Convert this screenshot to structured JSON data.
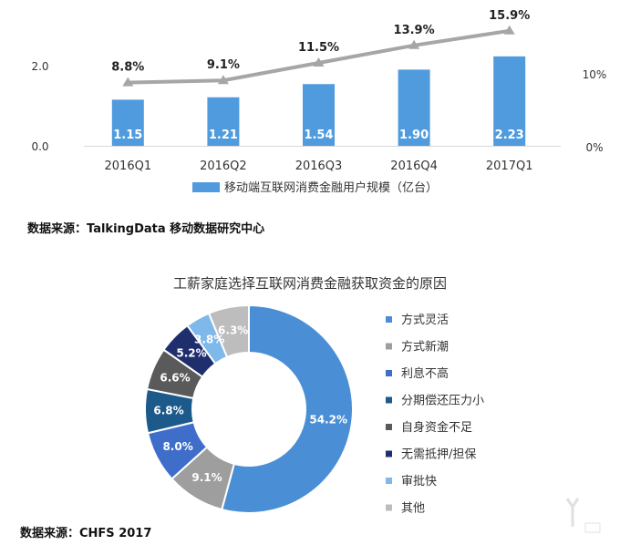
{
  "chart_data": [
    {
      "type": "bar",
      "categories": [
        "2016Q1",
        "2016Q2",
        "2016Q3",
        "2016Q4",
        "2017Q1"
      ],
      "series": [
        {
          "name": "移动端互联网消费金融用户规模（亿台）",
          "type": "bar",
          "axis": "left",
          "values": [
            1.15,
            1.21,
            1.54,
            1.9,
            2.23
          ],
          "value_labels": [
            "1.15",
            "1.21",
            "1.54",
            "1.90",
            "2.23"
          ]
        },
        {
          "name": "",
          "type": "line",
          "axis": "right",
          "values": [
            8.8,
            9.1,
            11.5,
            13.9,
            15.9
          ],
          "value_labels": [
            "8.8%",
            "9.1%",
            "11.5%",
            "13.9%",
            "15.9%"
          ]
        }
      ],
      "left_ticks": [
        "0.0",
        "2.0"
      ],
      "left_tick_values": [
        0,
        2
      ],
      "right_ticks": [
        "0%",
        "10%"
      ],
      "right_tick_values": [
        0,
        10
      ],
      "ylim": [
        0,
        2.8
      ],
      "y2lim": [
        0,
        17.5
      ],
      "legend_position": "bottom",
      "colors": {
        "bar": "#4f9bdd",
        "line": "#a6a6a6"
      }
    },
    {
      "type": "pie",
      "subtype": "donut",
      "title": "工薪家庭选择互联网消费金融获取资金的原因",
      "slices": [
        {
          "label": "方式灵活",
          "value": 54.2,
          "value_label": "54.2%",
          "color": "#4a8fd6"
        },
        {
          "label": "方式新潮",
          "value": 9.1,
          "value_label": "9.1%",
          "color": "#9e9e9e"
        },
        {
          "label": "利息不高",
          "value": 8.0,
          "value_label": "8.0%",
          "color": "#3e6ec9"
        },
        {
          "label": "分期偿还压力小",
          "value": 6.8,
          "value_label": "6.8%",
          "color": "#1d5a8c"
        },
        {
          "label": "自身资金不足",
          "value": 6.6,
          "value_label": "6.6%",
          "color": "#5a5a5a"
        },
        {
          "label": "无需抵押/担保",
          "value": 5.2,
          "value_label": "5.2%",
          "color": "#1f2f6e"
        },
        {
          "label": "审批快",
          "value": 3.8,
          "value_label": "3.8%",
          "color": "#7fb8ea"
        },
        {
          "label": "其他",
          "value": 6.3,
          "value_label": "6.3%",
          "color": "#bdbdbd"
        }
      ],
      "legend_position": "right"
    }
  ],
  "sources": {
    "top": "数据来源：TalkingData 移动数据研究中心",
    "bottom": "数据来源：CHFS 2017"
  }
}
